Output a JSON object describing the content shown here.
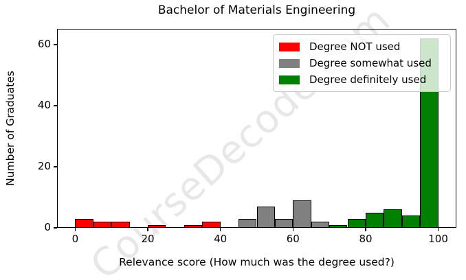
{
  "watermark": "CourseDecode.com",
  "chart_data": {
    "type": "bar",
    "title": "Bachelor of Materials Engineering",
    "xlabel": "Relevance score (How much was the degree used?)",
    "ylabel": "Number of Graduates",
    "xlim": [
      -5,
      105
    ],
    "ylim": [
      0,
      65.1
    ],
    "xticks": [
      0,
      20,
      40,
      60,
      80,
      100
    ],
    "yticks": [
      0,
      20,
      40,
      60
    ],
    "bin_width": 5,
    "grid": false,
    "series_colors": {
      "not_used": "#ff0000",
      "somewhat_used": "#808080",
      "definitely_used": "#008000"
    },
    "bars": [
      {
        "x0": 0,
        "x1": 5,
        "count": 3,
        "series": "not_used"
      },
      {
        "x0": 5,
        "x1": 10,
        "count": 2,
        "series": "not_used"
      },
      {
        "x0": 10,
        "x1": 15,
        "count": 2,
        "series": "not_used"
      },
      {
        "x0": 15,
        "x1": 20,
        "count": 0,
        "series": "not_used"
      },
      {
        "x0": 20,
        "x1": 25,
        "count": 1,
        "series": "not_used"
      },
      {
        "x0": 25,
        "x1": 30,
        "count": 0,
        "series": "not_used"
      },
      {
        "x0": 30,
        "x1": 35,
        "count": 1,
        "series": "not_used"
      },
      {
        "x0": 35,
        "x1": 40,
        "count": 2,
        "series": "not_used"
      },
      {
        "x0": 40,
        "x1": 45,
        "count": 0,
        "series": "not_used"
      },
      {
        "x0": 45,
        "x1": 50,
        "count": 3,
        "series": "somewhat_used"
      },
      {
        "x0": 50,
        "x1": 55,
        "count": 7,
        "series": "somewhat_used"
      },
      {
        "x0": 55,
        "x1": 60,
        "count": 3,
        "series": "somewhat_used"
      },
      {
        "x0": 60,
        "x1": 65,
        "count": 9,
        "series": "somewhat_used"
      },
      {
        "x0": 65,
        "x1": 70,
        "count": 2,
        "series": "somewhat_used"
      },
      {
        "x0": 70,
        "x1": 75,
        "count": 1,
        "series": "definitely_used"
      },
      {
        "x0": 75,
        "x1": 80,
        "count": 3,
        "series": "definitely_used"
      },
      {
        "x0": 80,
        "x1": 85,
        "count": 5,
        "series": "definitely_used"
      },
      {
        "x0": 85,
        "x1": 90,
        "count": 6,
        "series": "definitely_used"
      },
      {
        "x0": 90,
        "x1": 95,
        "count": 4,
        "series": "definitely_used"
      },
      {
        "x0": 95,
        "x1": 100,
        "count": 62,
        "series": "definitely_used"
      }
    ],
    "legend": {
      "position": "upper right",
      "items": [
        {
          "label": "Degree NOT used",
          "color": "#ff0000",
          "series": "not_used"
        },
        {
          "label": "Degree somewhat used",
          "color": "#808080",
          "series": "somewhat_used"
        },
        {
          "label": "Degree definitely used",
          "color": "#008000",
          "series": "definitely_used"
        }
      ]
    }
  }
}
